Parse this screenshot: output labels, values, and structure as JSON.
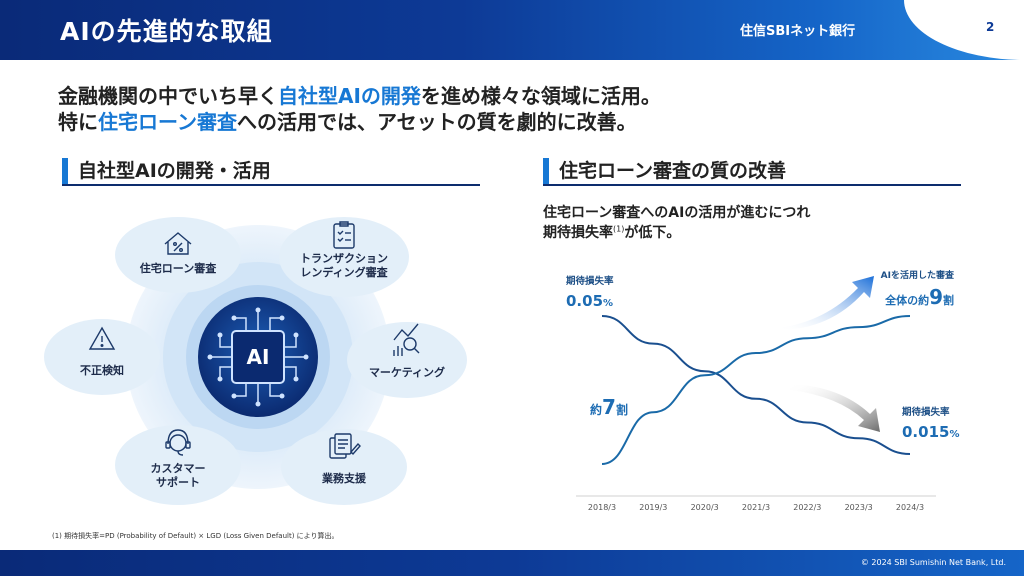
{
  "header": {
    "title": "AIの先進的な取組",
    "bank_name": "住信SBIネット銀行",
    "page_number": "2"
  },
  "lead": {
    "line1_pre": "金融機関の中でいち早く",
    "line1_hl": "自社型AIの開発",
    "line1_post": "を進め様々な領域に活用。",
    "line2_pre": "特に",
    "line2_hl": "住宅ローン審査",
    "line2_post": "への活用では、アセットの質を劇的に改善。"
  },
  "left_section": {
    "title": "自社型AIの開発・活用",
    "center_label": "AI",
    "items": [
      {
        "label": "住宅ローン審査",
        "icon": "house-percent-icon"
      },
      {
        "label": "トランザクション\nレンディング審査",
        "icon": "checklist-icon"
      },
      {
        "label": "マーケティング",
        "icon": "chart-magnifier-icon"
      },
      {
        "label": "業務支援",
        "icon": "documents-pen-icon"
      },
      {
        "label": "カスタマー\nサポート",
        "icon": "headset-icon"
      },
      {
        "label": "不正検知",
        "icon": "warning-icon"
      }
    ]
  },
  "right_section": {
    "title": "住宅ローン審査の質の改善",
    "desc_line1": "住宅ローン審査へのAIの活用が進むにつれ",
    "desc_line2_pre": "期待損失率",
    "desc_sup": "(1)",
    "desc_line2_post": "が低下。"
  },
  "chart_data": {
    "type": "line",
    "x": [
      "2018/3",
      "2019/3",
      "2020/3",
      "2021/3",
      "2022/3",
      "2023/3",
      "2024/3"
    ],
    "series": [
      {
        "name": "期待損失率",
        "values": [
          0.05,
          0.043,
          0.036,
          0.029,
          0.023,
          0.019,
          0.015
        ],
        "color": "#1a4f8f"
      },
      {
        "name": "AIを活用した審査",
        "values": [
          0.7,
          0.77,
          0.82,
          0.85,
          0.87,
          0.885,
          0.9
        ],
        "color": "#1a6aa8"
      }
    ],
    "annotations": {
      "loss_start_label": "期待損失率",
      "loss_start_value": "0.05",
      "loss_start_unit": "%",
      "loss_end_label": "期待損失率",
      "loss_end_value": "0.015",
      "loss_end_unit": "%",
      "ai_start_pre": "約",
      "ai_start_num": "7",
      "ai_start_post": "割",
      "ai_end_label": "AIを活用した審査",
      "ai_end_pre": "全体の約",
      "ai_end_num": "9",
      "ai_end_post": "割"
    },
    "grid": false
  },
  "footnote": "(1) 期待損失率=PD (Probability of Default) × LGD (Loss Given Default) により算出。",
  "copyright": "© 2024 SBI Sumishin Net Bank, Ltd.",
  "colors": {
    "navy": "#0d2d6e",
    "accent_blue": "#1778d4",
    "bubble": "#e3eff9"
  }
}
